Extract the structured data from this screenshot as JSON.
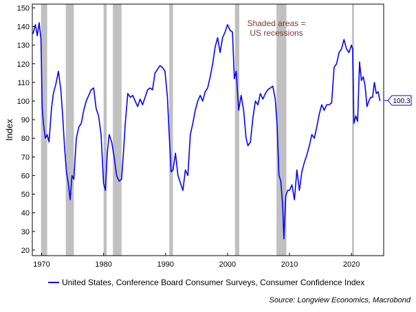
{
  "chart_data": {
    "type": "line",
    "ylabel": "Index",
    "xlim": [
      1968.5,
      2025.2
    ],
    "ylim": [
      17,
      152
    ],
    "yticks": [
      20,
      30,
      40,
      50,
      60,
      70,
      80,
      90,
      100,
      110,
      120,
      130,
      140,
      150
    ],
    "xticks": [
      1970,
      1980,
      1990,
      2000,
      2010,
      2020
    ],
    "line_color": "#0000ff",
    "recession_color": "#c0c0c0",
    "annotation_color": "#7b3b2b",
    "annotation": [
      "Shaded areas =",
      "US recessions"
    ],
    "last_value_label": "100.3",
    "last_value": 100.3,
    "recessions": [
      [
        1969.9,
        1970.9
      ],
      [
        1973.9,
        1975.2
      ],
      [
        1980.0,
        1980.5
      ],
      [
        1981.5,
        1982.9
      ],
      [
        1990.6,
        1991.2
      ],
      [
        2001.2,
        2001.9
      ],
      [
        2007.9,
        2009.5
      ],
      [
        2020.1,
        2020.4
      ]
    ],
    "series": [
      {
        "name": "United States, Conference Board Consumer Surveys, Consumer Confidence Index",
        "x": [
          1968.6,
          1969.0,
          1969.3,
          1969.6,
          1969.9,
          1970.1,
          1970.3,
          1970.6,
          1970.9,
          1971.2,
          1971.6,
          1971.9,
          1972.3,
          1972.7,
          1973.1,
          1973.4,
          1973.7,
          1974.0,
          1974.3,
          1974.6,
          1974.9,
          1975.2,
          1975.6,
          1976.0,
          1976.4,
          1976.8,
          1977.2,
          1977.6,
          1978.0,
          1978.4,
          1978.8,
          1979.2,
          1979.6,
          1980.0,
          1980.3,
          1980.6,
          1980.9,
          1981.3,
          1981.7,
          1982.1,
          1982.5,
          1982.9,
          1983.2,
          1983.5,
          1983.9,
          1984.3,
          1984.7,
          1985.1,
          1985.5,
          1985.9,
          1986.3,
          1986.7,
          1987.1,
          1987.5,
          1987.9,
          1988.3,
          1988.7,
          1989.1,
          1989.5,
          1989.9,
          1990.3,
          1990.6,
          1990.9,
          1991.2,
          1991.6,
          1992.0,
          1992.4,
          1992.8,
          1993.2,
          1993.6,
          1994.0,
          1994.4,
          1994.8,
          1995.2,
          1995.6,
          1996.0,
          1996.4,
          1996.8,
          1997.2,
          1997.6,
          1998.0,
          1998.4,
          1998.8,
          1999.2,
          1999.6,
          2000.0,
          2000.4,
          2000.8,
          2001.1,
          2001.4,
          2001.8,
          2002.2,
          2002.6,
          2003.0,
          2003.3,
          2003.7,
          2004.1,
          2004.5,
          2004.9,
          2005.3,
          2005.7,
          2006.1,
          2006.5,
          2006.9,
          2007.3,
          2007.7,
          2008.0,
          2008.3,
          2008.6,
          2008.9,
          2009.1,
          2009.4,
          2009.7,
          2010.0,
          2010.4,
          2010.8,
          2011.2,
          2011.6,
          2012.0,
          2012.4,
          2012.8,
          2013.2,
          2013.6,
          2014.0,
          2014.4,
          2014.8,
          2015.2,
          2015.6,
          2016.0,
          2016.4,
          2016.8,
          2017.2,
          2017.6,
          2018.0,
          2018.4,
          2018.8,
          2019.2,
          2019.6,
          2020.0,
          2020.2,
          2020.4,
          2020.7,
          2021.0,
          2021.3,
          2021.6,
          2021.9,
          2022.2,
          2022.5,
          2022.8,
          2023.1,
          2023.4,
          2023.7,
          2024.0,
          2024.3,
          2024.6
        ],
        "y": [
          136,
          141,
          135,
          142,
          133,
          96,
          88,
          80,
          82,
          78,
          96,
          104,
          109,
          116,
          106,
          92,
          75,
          62,
          56,
          47,
          60,
          58,
          80,
          86,
          88,
          95,
          100,
          103,
          106,
          107,
          96,
          92,
          82,
          56,
          52,
          72,
          82,
          78,
          70,
          60,
          57,
          58,
          72,
          88,
          104,
          102,
          103,
          100,
          97,
          101,
          98,
          102,
          106,
          107,
          106,
          115,
          117,
          119,
          118,
          116,
          102,
          81,
          62,
          63,
          72,
          60,
          56,
          52,
          63,
          60,
          82,
          88,
          95,
          100,
          103,
          100,
          105,
          107,
          113,
          120,
          129,
          134,
          126,
          134,
          137,
          141,
          138,
          137,
          112,
          116,
          95,
          103,
          95,
          80,
          76,
          78,
          91,
          100,
          98,
          104,
          101,
          104,
          106,
          107,
          108,
          101,
          87,
          60,
          57,
          44,
          26,
          49,
          52,
          52,
          55,
          47,
          63,
          52,
          62,
          67,
          71,
          76,
          82,
          80,
          86,
          93,
          98,
          95,
          98,
          98,
          99,
          118,
          120,
          126,
          128,
          133,
          128,
          126,
          130,
          128,
          88,
          92,
          89,
          121,
          111,
          113,
          108,
          97,
          100,
          102,
          102,
          110,
          104,
          105,
          100
        ]
      }
    ]
  },
  "legend": {
    "label": "United States, Conference Board Consumer Surveys, Consumer Confidence Index"
  },
  "source": "Source: Longview Economics, Macrobond"
}
